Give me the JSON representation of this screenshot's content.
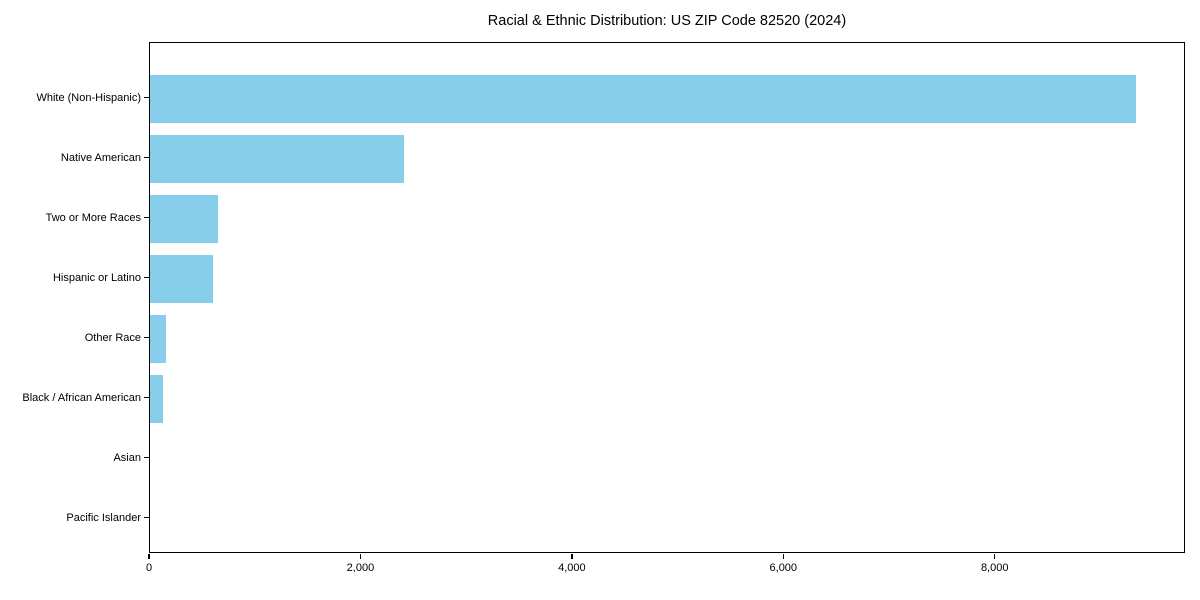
{
  "title": "Racial & Ethnic Distribution: US ZIP Code 82520 (2024)",
  "chart_data": {
    "type": "bar",
    "orientation": "horizontal",
    "title": "Racial & Ethnic Distribution: US ZIP Code 82520 (2024)",
    "xlabel": "",
    "ylabel": "",
    "categories": [
      "White (Non-Hispanic)",
      "Native American",
      "Two or More Races",
      "Hispanic or Latino",
      "Other Race",
      "Black / African American",
      "Asian",
      "Pacific Islander"
    ],
    "values": [
      9330,
      2400,
      640,
      595,
      150,
      120,
      0,
      0
    ],
    "xlim": [
      0,
      9800
    ],
    "xticks": [
      0,
      2000,
      4000,
      6000,
      8000
    ],
    "xtick_labels": [
      "0",
      "2,000",
      "4,000",
      "6,000",
      "8,000"
    ],
    "bar_color": "#87CEEB",
    "grid": false,
    "legend_position": "none"
  }
}
